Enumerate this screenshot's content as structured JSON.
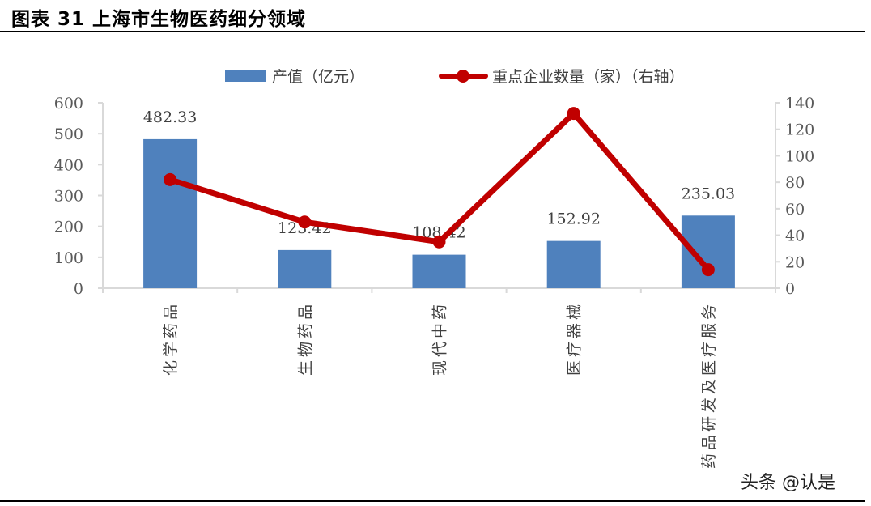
{
  "header": {
    "title": "图表 31 上海市生物医药细分领域"
  },
  "watermark": "头条 @认是",
  "colors": {
    "bar": "#4F81BD",
    "line": "#C00000",
    "axis": "#D9D9D9"
  },
  "legend": {
    "bar_label": "产值（亿元）",
    "line_label": "重点企业数量（家）（右轴）"
  },
  "chart_data": {
    "type": "bar+line",
    "title": "上海市生物医药细分领域",
    "categories": [
      "化学药品",
      "生物药品",
      "现代中药",
      "医疗器械",
      "药品研发及医疗服务"
    ],
    "series": [
      {
        "name": "产值（亿元）",
        "type": "bar",
        "axis": "left",
        "values": [
          482.33,
          123.42,
          108.42,
          152.92,
          235.03
        ],
        "labels": [
          "482.33",
          "123.42",
          "108.42",
          "152.92",
          "235.03"
        ]
      },
      {
        "name": "重点企业数量（家）（右轴）",
        "type": "line",
        "axis": "right",
        "values": [
          82,
          50,
          35,
          132,
          14
        ]
      }
    ],
    "y_left": {
      "ylim": [
        0,
        600
      ],
      "ticks": [
        "0",
        "100",
        "200",
        "300",
        "400",
        "500",
        "600"
      ]
    },
    "y_right": {
      "ylim": [
        0,
        140
      ],
      "ticks": [
        "0",
        "20",
        "40",
        "60",
        "80",
        "100",
        "120",
        "140"
      ]
    },
    "legend_position": "top",
    "grid": false
  }
}
